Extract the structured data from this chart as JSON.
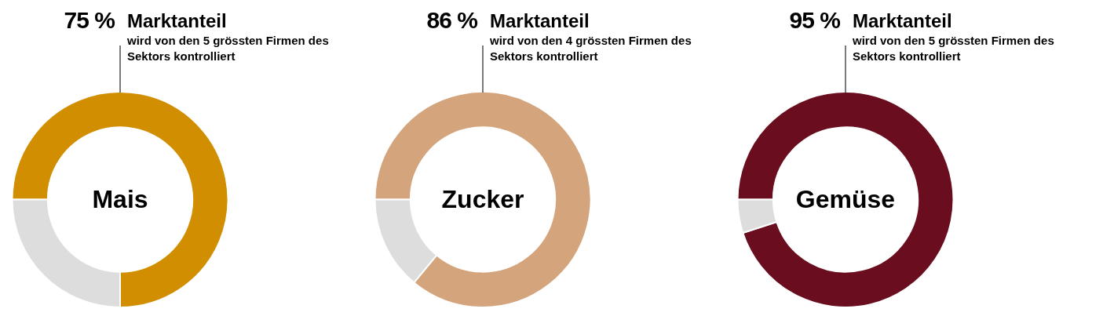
{
  "chart_data": [
    {
      "type": "donut",
      "title": "Mais",
      "subtitle": "wird von den 5 grössten Firmen des Sektors kontrolliert",
      "categories": [
        "Marktanteil",
        null
      ],
      "values": [
        75,
        25
      ],
      "colors": [
        "#d08e00",
        "#dcdddc"
      ],
      "value_labels": [
        "75 %",
        null
      ]
    },
    {
      "type": "donut",
      "title": "Zucker",
      "subtitle": "wird von den 4 grössten Firmen des Sektors kontrolliert",
      "categories": [
        "Marktanteil",
        null
      ],
      "values": [
        86,
        14
      ],
      "colors": [
        "#d4a47c",
        "#dcdddc"
      ],
      "value_labels": [
        "86 %",
        null
      ]
    },
    {
      "type": "donut",
      "title": "Gemüse",
      "subtitle": "wird von den 5 grössten Firmen des Sektors kontrolliert",
      "categories": [
        "Marktanteil",
        null
      ],
      "values": [
        95,
        5
      ],
      "colors": [
        "#6a0e1f",
        "#dcdddc"
      ],
      "value_labels": [
        "95 %",
        null
      ]
    }
  ]
}
